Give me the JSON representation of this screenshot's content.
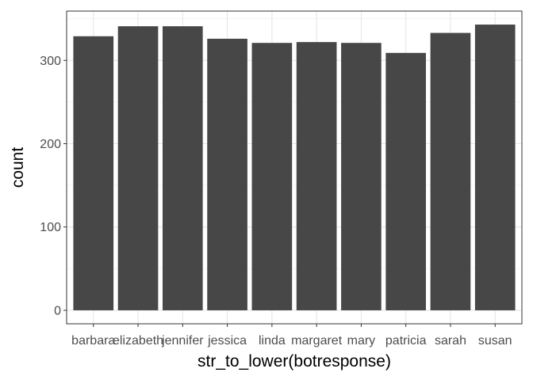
{
  "chart_data": {
    "type": "bar",
    "title": "",
    "xlabel": "str_to_lower(botresponse)",
    "ylabel": "count",
    "categories": [
      "barbara",
      "elizabeth",
      "jennifer",
      "jessica",
      "linda",
      "margaret",
      "mary",
      "patricia",
      "sarah",
      "susan"
    ],
    "values": [
      329,
      341,
      341,
      326,
      321,
      322,
      321,
      309,
      333,
      343
    ],
    "ylim": [
      -16.2,
      359.2
    ],
    "yticks": [
      0,
      100,
      200,
      300
    ],
    "grid": true,
    "legend": "none",
    "colors": {
      "bar": "#474747",
      "grid_major": "#e6e6e6",
      "grid_minor": "#f2f2f2",
      "panel_border": "#333333",
      "tick_label": "#4d4d4d"
    }
  }
}
